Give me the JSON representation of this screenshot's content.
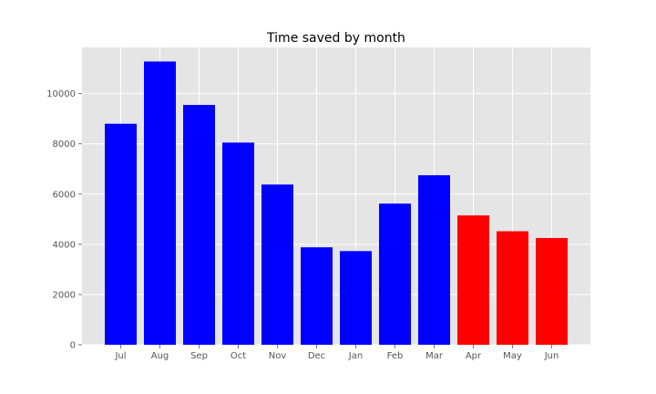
{
  "chart_data": {
    "type": "bar",
    "title": "Time saved by month",
    "xlabel": "",
    "ylabel": "",
    "categories": [
      "Jul",
      "Aug",
      "Sep",
      "Oct",
      "Nov",
      "Dec",
      "Jan",
      "Feb",
      "Mar",
      "Apr",
      "May",
      "Jun"
    ],
    "values": [
      8800,
      11280,
      9550,
      8050,
      6380,
      3880,
      3730,
      5620,
      6750,
      5150,
      4520,
      4250
    ],
    "bar_colors": [
      "#0000ff",
      "#0000ff",
      "#0000ff",
      "#0000ff",
      "#0000ff",
      "#0000ff",
      "#0000ff",
      "#0000ff",
      "#0000ff",
      "#ff0000",
      "#ff0000",
      "#ff0000"
    ],
    "ylim": [
      0,
      11840
    ],
    "yticks": [
      0,
      2000,
      4000,
      6000,
      8000,
      10000
    ],
    "grid": true,
    "background_color": "#e5e5e5",
    "grid_color": "#ffffff"
  }
}
